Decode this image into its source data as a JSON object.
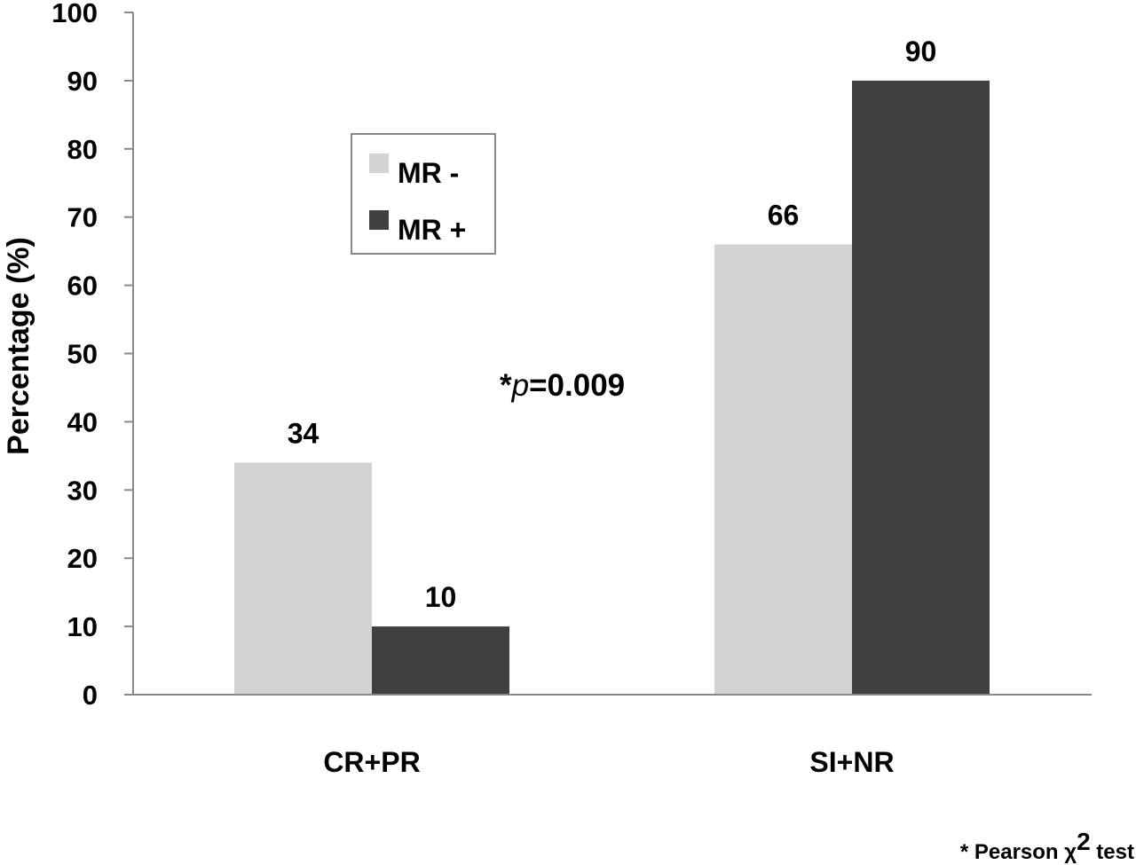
{
  "chart_data": {
    "type": "bar",
    "categories": [
      "CR+PR",
      "SI+NR"
    ],
    "series": [
      {
        "name": "MR -",
        "values": [
          34,
          66
        ],
        "color": "#d3d3d3"
      },
      {
        "name": "MR +",
        "values": [
          10,
          90
        ],
        "color": "#404040"
      }
    ],
    "data_labels": [
      [
        "34",
        "66"
      ],
      [
        "10",
        "90"
      ]
    ],
    "ylabel": "Percentage (%)",
    "xlabel": "",
    "ylim": [
      0,
      100
    ],
    "yticks": [
      0,
      10,
      20,
      30,
      40,
      50,
      60,
      70,
      80,
      90,
      100
    ],
    "grid": false,
    "legend_position": "upper-left",
    "annotation": {
      "prefix": "*",
      "italic": "p",
      "suffix": "=0.009"
    },
    "footnote": {
      "prefix": "* Pearson χ",
      "superscript": "2",
      "suffix": " test"
    }
  }
}
